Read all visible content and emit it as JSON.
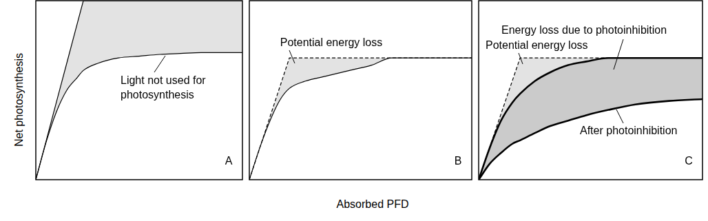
{
  "x_label": "Absorbed PFD",
  "y_label": "Net photosynthesis",
  "chart_data": [
    {
      "type": "line",
      "panel_label": "A",
      "tick_labels": false,
      "grid": false,
      "xlim": [
        0,
        100
      ],
      "ylim": [
        0,
        100
      ],
      "x": [
        0,
        5,
        10,
        15,
        20,
        23,
        30,
        40,
        50,
        60,
        70,
        80,
        90,
        100
      ],
      "series": [
        {
          "color": "#000000",
          "line_style": "solid",
          "marker": "none",
          "values": [
            0,
            21.7,
            43.5,
            65.2,
            87,
            100,
            100,
            100,
            100,
            100,
            100,
            100,
            100,
            100
          ]
        },
        {
          "color": "#000000",
          "line_style": "solid",
          "marker": "none",
          "values": [
            0,
            21,
            38,
            50,
            57,
            61,
            65,
            68,
            69,
            70,
            70.5,
            71,
            71,
            71
          ]
        }
      ],
      "annotations": [
        "Light not used for\nphotosynthesis"
      ]
    },
    {
      "type": "line",
      "panel_label": "B",
      "tick_labels": false,
      "grid": false,
      "xlim": [
        0,
        100
      ],
      "ylim": [
        0,
        100
      ],
      "x": [
        0,
        5,
        10,
        14,
        18,
        25,
        35,
        45,
        55,
        64,
        75,
        100
      ],
      "series": [
        {
          "color": "#000000",
          "line_style": "dashed",
          "marker": "none",
          "values": [
            0,
            18.9,
            37.8,
            52.9,
            68,
            68,
            68,
            68,
            68,
            68,
            68,
            68
          ]
        },
        {
          "color": "#000000",
          "line_style": "solid",
          "marker": "none",
          "values": [
            0,
            18.9,
            35,
            45,
            51,
            55,
            58,
            61,
            64,
            68,
            68,
            68
          ]
        }
      ],
      "annotations": [
        "Potential energy loss"
      ]
    },
    {
      "type": "line",
      "panel_label": "C",
      "tick_labels": false,
      "grid": false,
      "xlim": [
        0,
        100
      ],
      "ylim": [
        0,
        100
      ],
      "x": [
        0,
        5,
        10,
        15,
        18.5,
        25,
        32,
        40,
        48,
        58,
        70,
        85,
        100
      ],
      "series": [
        {
          "color": "#000000",
          "line_style": "dashed",
          "marker": "none",
          "values": [
            0,
            18.4,
            36.8,
            55.1,
            68,
            68,
            68,
            68,
            68,
            68,
            68,
            68,
            68
          ]
        },
        {
          "color": "#000000",
          "line_style": "solid",
          "marker": "none",
          "values": [
            0,
            18,
            33,
            43,
            48,
            55,
            60,
            64,
            66,
            68,
            68,
            68,
            68
          ]
        },
        {
          "color": "#000000",
          "line_style": "solid",
          "marker": "none",
          "values": [
            0,
            9,
            15,
            20,
            22,
            26,
            30,
            33,
            36,
            39,
            42,
            44,
            45
          ]
        }
      ],
      "annotations": [
        "Energy loss due to photoinhibition",
        "Potential energy loss",
        "After photoinhibition"
      ]
    }
  ]
}
